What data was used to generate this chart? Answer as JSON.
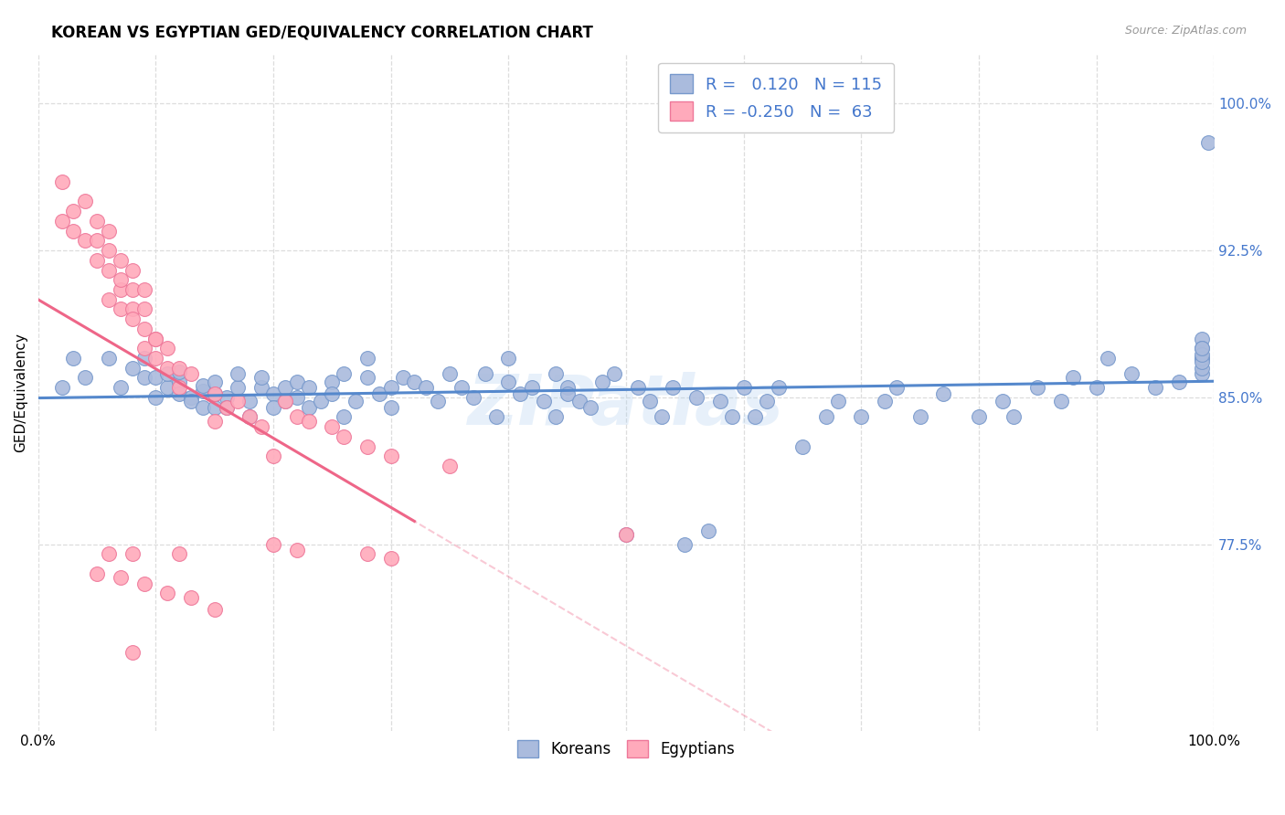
{
  "title": "KOREAN VS EGYPTIAN GED/EQUIVALENCY CORRELATION CHART",
  "source": "Source: ZipAtlas.com",
  "ylabel": "GED/Equivalency",
  "ytick_labels": [
    "100.0%",
    "92.5%",
    "85.0%",
    "77.5%"
  ],
  "ytick_values": [
    1.0,
    0.925,
    0.85,
    0.775
  ],
  "xlim": [
    0.0,
    1.0
  ],
  "ylim": [
    0.68,
    1.025
  ],
  "korean_color": "#aabbdd",
  "korean_edge": "#7799cc",
  "egyptian_color": "#ffaabb",
  "egyptian_edge": "#ee7799",
  "line_korean_color": "#5588cc",
  "line_egyptian_color": "#ee6688",
  "korean_R": 0.12,
  "korean_N": 115,
  "egyptian_R": -0.25,
  "egyptian_N": 63,
  "watermark": "ZIPatlas",
  "grid_color": "#dddddd",
  "korean_scatter_x": [
    0.02,
    0.03,
    0.04,
    0.06,
    0.07,
    0.08,
    0.09,
    0.09,
    0.1,
    0.1,
    0.11,
    0.11,
    0.12,
    0.12,
    0.12,
    0.13,
    0.13,
    0.14,
    0.14,
    0.14,
    0.15,
    0.15,
    0.15,
    0.16,
    0.16,
    0.17,
    0.17,
    0.18,
    0.18,
    0.19,
    0.19,
    0.2,
    0.2,
    0.21,
    0.21,
    0.22,
    0.22,
    0.23,
    0.23,
    0.24,
    0.25,
    0.25,
    0.26,
    0.26,
    0.27,
    0.28,
    0.28,
    0.29,
    0.3,
    0.3,
    0.31,
    0.32,
    0.33,
    0.34,
    0.35,
    0.36,
    0.37,
    0.38,
    0.39,
    0.4,
    0.4,
    0.41,
    0.42,
    0.43,
    0.44,
    0.44,
    0.45,
    0.45,
    0.46,
    0.47,
    0.48,
    0.49,
    0.5,
    0.51,
    0.52,
    0.53,
    0.54,
    0.55,
    0.56,
    0.57,
    0.58,
    0.59,
    0.6,
    0.61,
    0.62,
    0.63,
    0.65,
    0.67,
    0.68,
    0.7,
    0.72,
    0.73,
    0.75,
    0.77,
    0.8,
    0.82,
    0.83,
    0.85,
    0.87,
    0.88,
    0.9,
    0.91,
    0.93,
    0.95,
    0.97,
    0.99,
    0.99,
    0.99,
    0.99,
    0.99,
    0.99,
    0.99,
    0.99,
    0.99,
    0.995
  ],
  "korean_scatter_y": [
    0.855,
    0.87,
    0.86,
    0.87,
    0.855,
    0.865,
    0.87,
    0.86,
    0.86,
    0.85,
    0.855,
    0.862,
    0.858,
    0.863,
    0.852,
    0.85,
    0.848,
    0.853,
    0.845,
    0.856,
    0.845,
    0.852,
    0.858,
    0.85,
    0.845,
    0.855,
    0.862,
    0.848,
    0.84,
    0.855,
    0.86,
    0.852,
    0.845,
    0.855,
    0.848,
    0.858,
    0.85,
    0.845,
    0.855,
    0.848,
    0.858,
    0.852,
    0.862,
    0.84,
    0.848,
    0.87,
    0.86,
    0.852,
    0.855,
    0.845,
    0.86,
    0.858,
    0.855,
    0.848,
    0.862,
    0.855,
    0.85,
    0.862,
    0.84,
    0.858,
    0.87,
    0.852,
    0.855,
    0.848,
    0.862,
    0.84,
    0.855,
    0.852,
    0.848,
    0.845,
    0.858,
    0.862,
    0.78,
    0.855,
    0.848,
    0.84,
    0.855,
    0.775,
    0.85,
    0.782,
    0.848,
    0.84,
    0.855,
    0.84,
    0.848,
    0.855,
    0.825,
    0.84,
    0.848,
    0.84,
    0.848,
    0.855,
    0.84,
    0.852,
    0.84,
    0.848,
    0.84,
    0.855,
    0.848,
    0.86,
    0.855,
    0.87,
    0.862,
    0.855,
    0.858,
    0.88,
    0.87,
    0.862,
    0.875,
    0.865,
    0.87,
    0.868,
    0.872,
    0.875,
    0.98
  ],
  "egyptian_scatter_x": [
    0.02,
    0.02,
    0.03,
    0.03,
    0.04,
    0.04,
    0.05,
    0.05,
    0.05,
    0.06,
    0.06,
    0.06,
    0.06,
    0.07,
    0.07,
    0.07,
    0.07,
    0.08,
    0.08,
    0.08,
    0.08,
    0.09,
    0.09,
    0.09,
    0.09,
    0.1,
    0.1,
    0.1,
    0.11,
    0.11,
    0.12,
    0.12,
    0.13,
    0.15,
    0.15,
    0.16,
    0.17,
    0.18,
    0.19,
    0.2,
    0.21,
    0.22,
    0.23,
    0.25,
    0.26,
    0.28,
    0.3,
    0.35,
    0.5,
    0.12,
    0.08,
    0.06,
    0.05,
    0.07,
    0.09,
    0.11,
    0.13,
    0.15,
    0.2,
    0.22,
    0.28,
    0.3,
    0.08
  ],
  "egyptian_scatter_y": [
    0.96,
    0.94,
    0.945,
    0.935,
    0.93,
    0.95,
    0.93,
    0.94,
    0.92,
    0.915,
    0.925,
    0.935,
    0.9,
    0.905,
    0.92,
    0.91,
    0.895,
    0.905,
    0.915,
    0.895,
    0.89,
    0.895,
    0.905,
    0.885,
    0.875,
    0.88,
    0.87,
    0.88,
    0.875,
    0.865,
    0.865,
    0.855,
    0.862,
    0.852,
    0.838,
    0.845,
    0.848,
    0.84,
    0.835,
    0.82,
    0.848,
    0.84,
    0.838,
    0.835,
    0.83,
    0.825,
    0.82,
    0.815,
    0.78,
    0.77,
    0.77,
    0.77,
    0.76,
    0.758,
    0.755,
    0.75,
    0.748,
    0.742,
    0.775,
    0.772,
    0.77,
    0.768,
    0.72
  ]
}
